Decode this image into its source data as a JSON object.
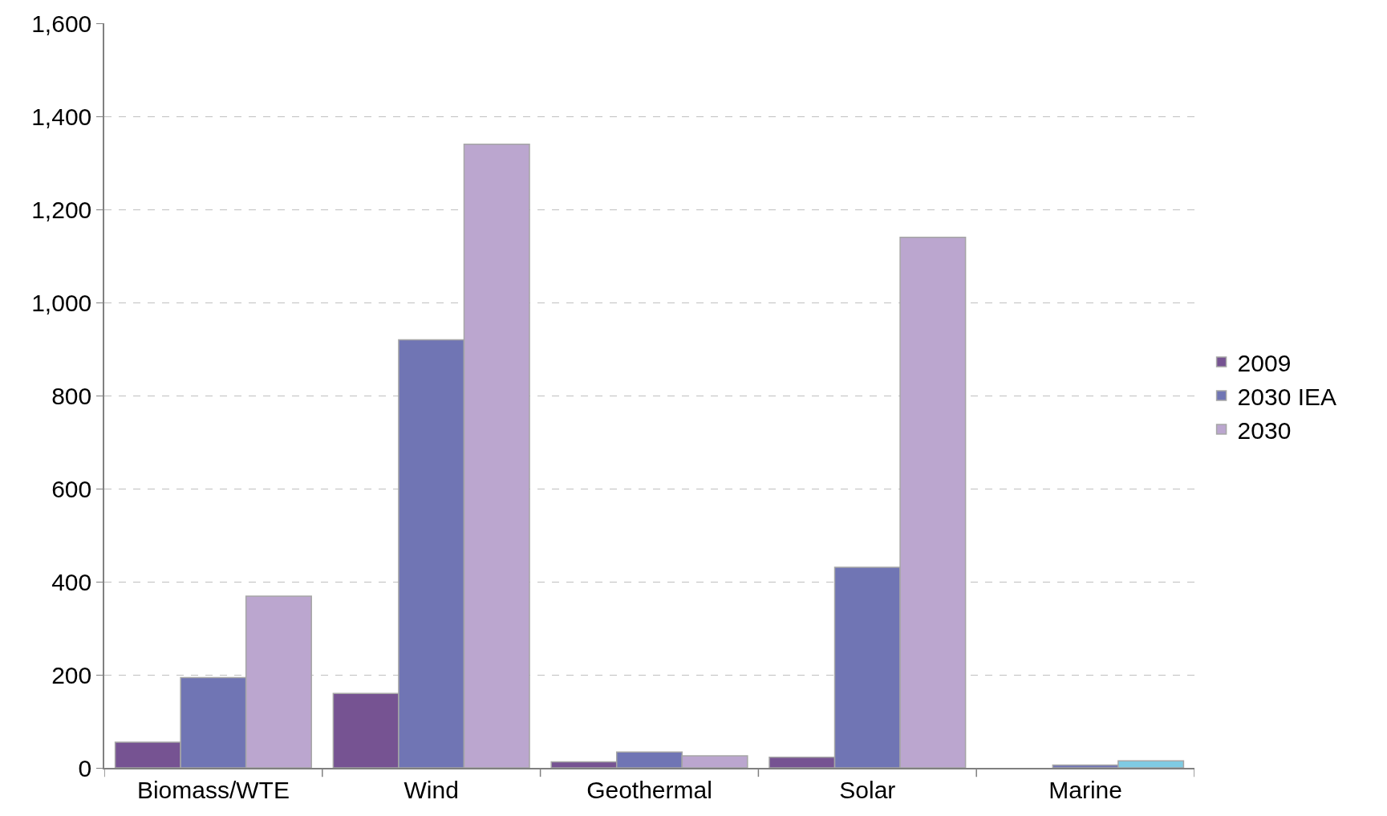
{
  "chart_data": {
    "type": "bar",
    "categories": [
      "Biomass/WTE",
      "Wind",
      "Geothermal",
      "Solar",
      "Marine"
    ],
    "series": [
      {
        "name": "2009",
        "color": "#765392",
        "values": [
          55,
          160,
          13,
          23,
          null
        ]
      },
      {
        "name": "2030 IEA",
        "color": "#7075b4",
        "values": [
          194,
          920,
          34,
          431,
          6
        ]
      },
      {
        "name": "2030",
        "color": "#bba6cf",
        "colors": [
          "#bba6cf",
          "#bba6cf",
          "#bba6cf",
          "#bba6cf",
          "#7fcbe3"
        ],
        "values": [
          369,
          1340,
          26,
          1140,
          15
        ]
      }
    ],
    "ylim": [
      0,
      1600
    ],
    "yticks": [
      {
        "value": 0,
        "label": "0"
      },
      {
        "value": 200,
        "label": "200"
      },
      {
        "value": 400,
        "label": "400"
      },
      {
        "value": 600,
        "label": "600"
      },
      {
        "value": 800,
        "label": "800"
      },
      {
        "value": 1000,
        "label": "1,000"
      },
      {
        "value": 1200,
        "label": "1,200"
      },
      {
        "value": 1400,
        "label": "1,400"
      },
      {
        "value": 1600,
        "label": "1,600"
      }
    ],
    "grid": "y",
    "legend": "right"
  }
}
